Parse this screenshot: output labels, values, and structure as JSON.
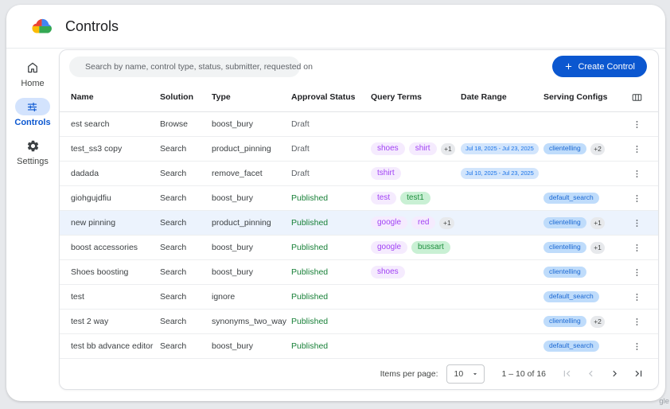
{
  "header": {
    "title": "Controls"
  },
  "sidebar": {
    "items": [
      {
        "label": "Home",
        "icon": "home-icon",
        "active": false
      },
      {
        "label": "Controls",
        "icon": "tune-icon",
        "active": true
      },
      {
        "label": "Settings",
        "icon": "gear-icon",
        "active": false
      }
    ]
  },
  "toolbar": {
    "search_placeholder": "Search by name, control type, status, submitter, requested on",
    "create_label": "Create Control"
  },
  "table": {
    "columns": [
      "Name",
      "Solution",
      "Type",
      "Approval Status",
      "Query Terms",
      "Date Range",
      "Serving Configs"
    ],
    "rows": [
      {
        "name": "est search",
        "solution": "Browse",
        "type": "boost_bury",
        "status": "Draft",
        "query_terms": [],
        "extra_terms": "",
        "date_range": "",
        "serving_configs": [],
        "extra_configs": "",
        "highlighted": false
      },
      {
        "name": "test_ss3 copy",
        "solution": "Search",
        "type": "product_pinning",
        "status": "Draft",
        "query_terms": [
          {
            "label": "shoes",
            "color": "purple"
          },
          {
            "label": "shirt",
            "color": "purple"
          }
        ],
        "extra_terms": "+1",
        "date_range": "Jul 18, 2025 - Jul 23, 2025",
        "serving_configs": [
          "clientelling"
        ],
        "extra_configs": "+2",
        "highlighted": false
      },
      {
        "name": "dadada",
        "solution": "Search",
        "type": "remove_facet",
        "status": "Draft",
        "query_terms": [
          {
            "label": "tshirt",
            "color": "purple"
          }
        ],
        "extra_terms": "",
        "date_range": "Jul 10, 2025 - Jul 23, 2025",
        "serving_configs": [],
        "extra_configs": "",
        "highlighted": false
      },
      {
        "name": "giohgujdfiu",
        "solution": "Search",
        "type": "boost_bury",
        "status": "Published",
        "query_terms": [
          {
            "label": "test",
            "color": "purple"
          },
          {
            "label": "test1",
            "color": "green"
          }
        ],
        "extra_terms": "",
        "date_range": "",
        "serving_configs": [
          "default_search"
        ],
        "extra_configs": "",
        "highlighted": false
      },
      {
        "name": "new pinning",
        "solution": "Search",
        "type": "product_pinning",
        "status": "Published",
        "query_terms": [
          {
            "label": "google",
            "color": "purple"
          },
          {
            "label": "red",
            "color": "purple"
          }
        ],
        "extra_terms": "+1",
        "date_range": "",
        "serving_configs": [
          "clientelling"
        ],
        "extra_configs": "+1",
        "highlighted": true
      },
      {
        "name": "boost accessories",
        "solution": "Search",
        "type": "boost_bury",
        "status": "Published",
        "query_terms": [
          {
            "label": "google",
            "color": "purple"
          },
          {
            "label": "bussart",
            "color": "green"
          }
        ],
        "extra_terms": "",
        "date_range": "",
        "serving_configs": [
          "clientelling"
        ],
        "extra_configs": "+1",
        "highlighted": false
      },
      {
        "name": "Shoes boosting",
        "solution": "Search",
        "type": "boost_bury",
        "status": "Published",
        "query_terms": [
          {
            "label": "shoes",
            "color": "purple"
          }
        ],
        "extra_terms": "",
        "date_range": "",
        "serving_configs": [
          "clientelling"
        ],
        "extra_configs": "",
        "highlighted": false
      },
      {
        "name": "test",
        "solution": "Search",
        "type": "ignore",
        "status": "Published",
        "query_terms": [],
        "extra_terms": "",
        "date_range": "",
        "serving_configs": [
          "default_search"
        ],
        "extra_configs": "",
        "highlighted": false
      },
      {
        "name": "test 2 way",
        "solution": "Search",
        "type": "synonyms_two_way",
        "status": "Published",
        "query_terms": [],
        "extra_terms": "",
        "date_range": "",
        "serving_configs": [
          "clientelling"
        ],
        "extra_configs": "+2",
        "highlighted": false
      },
      {
        "name": "test bb advance editor",
        "solution": "Search",
        "type": "boost_bury",
        "status": "Published",
        "query_terms": [],
        "extra_terms": "",
        "date_range": "",
        "serving_configs": [
          "default_search"
        ],
        "extra_configs": "",
        "highlighted": false
      }
    ]
  },
  "pagination": {
    "items_per_page_label": "Items per page:",
    "items_per_page_value": "10",
    "range_label": "1 – 10 of 16"
  },
  "watermark": "gle",
  "colors": {
    "accent_blue": "#0b57d0",
    "published_green": "#188038",
    "draft_gray": "#5f6368",
    "term_pill_purple_bg": "#f5ebfe",
    "term_pill_purple_text": "#a142f4",
    "term_pill_green_bg": "#c9f0d4",
    "term_pill_green_text": "#1e8e3e",
    "date_pill_bg": "#d2e5fc",
    "date_pill_text": "#1a73e8",
    "config_pill_bg": "#bfdcfb",
    "config_pill_text": "#1967d2",
    "selected_row_bg": "#ecf3fd",
    "sidebar_active_bg": "#d3e3fd"
  }
}
